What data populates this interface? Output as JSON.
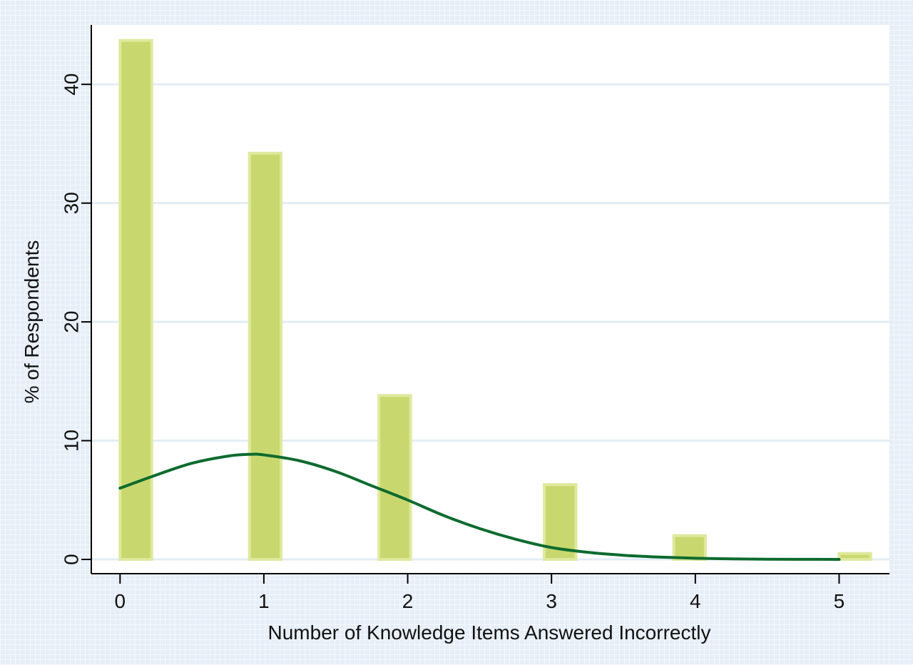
{
  "chart_data": {
    "type": "bar",
    "title": "",
    "xlabel": "Number of Knowledge Items Answered Incorrectly",
    "ylabel": "% of Respondents",
    "xlim": [
      -0.2,
      5.35
    ],
    "ylim": [
      -1.2,
      45
    ],
    "x_ticks": [
      0,
      1,
      2,
      3,
      4,
      5
    ],
    "y_ticks": [
      0,
      10,
      20,
      30,
      40
    ],
    "grid": true,
    "categories": [
      "0",
      "1",
      "2",
      "3",
      "4",
      "5"
    ],
    "series": [
      {
        "type": "bar",
        "x": [
          0,
          0.9,
          1.8,
          2.95,
          3.85,
          5.0
        ],
        "width": 0.22,
        "values": [
          43.7,
          34.2,
          13.8,
          6.3,
          2.0,
          0.5
        ]
      },
      {
        "type": "line",
        "x": [
          0.0,
          0.25,
          0.5,
          0.75,
          0.9,
          1.0,
          1.25,
          1.5,
          1.75,
          2.0,
          2.25,
          2.5,
          2.75,
          3.0,
          3.25,
          3.5,
          3.75,
          4.0,
          4.25,
          4.5,
          4.75,
          5.0
        ],
        "values": [
          6.0,
          7.1,
          8.1,
          8.7,
          8.85,
          8.8,
          8.3,
          7.4,
          6.2,
          5.0,
          3.7,
          2.6,
          1.7,
          1.0,
          0.6,
          0.35,
          0.2,
          0.1,
          0.05,
          0.02,
          0.01,
          0.0
        ]
      }
    ],
    "colors": {
      "bar_fill": "#c9d86e",
      "bar_edge": "#dfe99d",
      "curve": "#0d6b2e",
      "plot_bg": "#ffffff",
      "grid": "#e3edf6",
      "page_bg": "#e6eef8"
    }
  }
}
